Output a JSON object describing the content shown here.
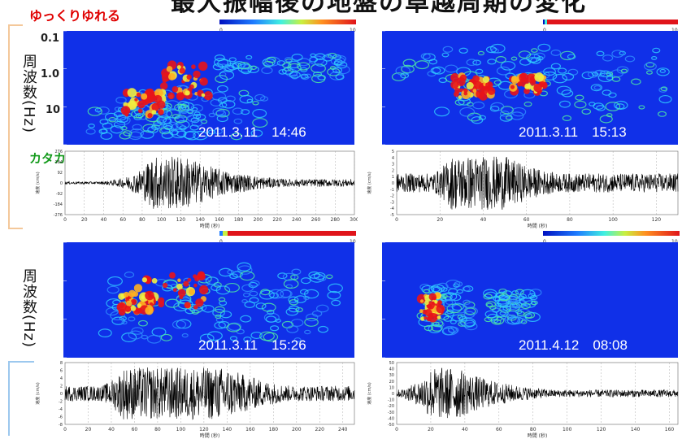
{
  "header": {
    "title_fragment": "最大振幅後の地盤の卓越周期の変化",
    "slow_shaking": "ゆっくりゆれる",
    "fast_shaking": "カタカタとゆれる"
  },
  "axis": {
    "frequency_label": "周波数(Hz)",
    "freq_ticks": [
      "0.1",
      "1.0",
      "10"
    ]
  },
  "colorbar": {
    "min": "0",
    "max": "10"
  },
  "colors": {
    "spectrogram_bg": "#1030e8",
    "hot": "#e8141a",
    "arrow_up": "#e81c1c",
    "arrow_down": "#1f8a1f",
    "bracket": "#f4c89a",
    "bracket_blue": "#9cc8ee"
  },
  "chart_data": [
    {
      "type": "heatmap",
      "panel": "top-left",
      "timestamp": "2011.3.11　14:46",
      "waveform": {
        "type": "line",
        "xlabel": "時間 (秒)",
        "ylabel": "速度 (cm/s)",
        "x_ticks": [
          "0",
          "20",
          "40",
          "60",
          "80",
          "100",
          "120",
          "140",
          "160",
          "180",
          "200",
          "220",
          "240",
          "260",
          "280",
          "300"
        ],
        "y_ticks": [
          "276",
          "184",
          "92",
          "0",
          "-92",
          "-184",
          "-276"
        ],
        "xlim": [
          0,
          300
        ],
        "energy_peak_seconds": [
          90,
          125
        ]
      }
    },
    {
      "type": "heatmap",
      "panel": "top-right",
      "timestamp": "2011.3.11　15:13",
      "waveform": {
        "type": "line",
        "xlabel": "時間 (秒)",
        "ylabel": "速度 (cm/s)",
        "x_ticks": [
          "0",
          "20",
          "40",
          "60",
          "80",
          "100",
          "120"
        ],
        "y_ticks": [
          "5",
          "4",
          "3",
          "2",
          "1",
          "0",
          "-1",
          "-2",
          "-3",
          "-4",
          "-5"
        ],
        "xlim": [
          0,
          130
        ],
        "energy_peak_seconds": [
          25,
          50
        ]
      }
    },
    {
      "type": "heatmap",
      "panel": "bottom-left",
      "timestamp": "2011.3.11　15:26",
      "waveform": {
        "type": "line",
        "xlabel": "時間 (秒)",
        "ylabel": "速度 (cm/s)",
        "x_ticks": [
          "0",
          "20",
          "40",
          "60",
          "80",
          "100",
          "120",
          "140",
          "160",
          "180",
          "200",
          "220",
          "240"
        ],
        "y_ticks": [
          "8",
          "6",
          "4",
          "2",
          "0",
          "-2",
          "-4",
          "-6",
          "-8"
        ],
        "xlim": [
          0,
          250
        ],
        "energy_peak_seconds": [
          50,
          140
        ]
      }
    },
    {
      "type": "heatmap",
      "panel": "bottom-right",
      "timestamp": "2011.4.12　08:08",
      "waveform": {
        "type": "line",
        "xlabel": "時間 (秒)",
        "ylabel": "速度 (cm/s)",
        "x_ticks": [
          "0",
          "20",
          "40",
          "60",
          "80",
          "100",
          "120",
          "140",
          "160"
        ],
        "y_ticks": [
          "50",
          "40",
          "30",
          "20",
          "10",
          "0",
          "-10",
          "-20",
          "-30",
          "-40",
          "-50"
        ],
        "xlim": [
          0,
          165
        ],
        "energy_peak_seconds": [
          20,
          35
        ]
      }
    }
  ]
}
